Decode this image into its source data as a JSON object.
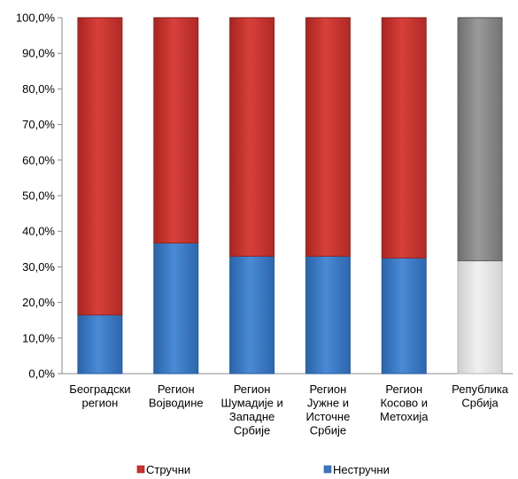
{
  "chart_data": {
    "type": "bar",
    "stacked": true,
    "percent": true,
    "categories": [
      [
        "Београдски",
        "регион"
      ],
      [
        "Регион",
        "Војводине"
      ],
      [
        "Регион",
        "Шумадије и",
        "Западне",
        "Србије"
      ],
      [
        "Регион",
        "Јужне и",
        "Источне",
        "Србије"
      ],
      [
        "Регион",
        "Косово и",
        "Метохија"
      ],
      [
        "Република",
        "Србија"
      ]
    ],
    "series": [
      {
        "name": "Нестручни",
        "values": [
          16.5,
          36.7,
          33.0,
          33.0,
          32.5,
          31.7
        ],
        "color": "#3a78c2"
      },
      {
        "name": "Стручни",
        "values": [
          83.5,
          63.3,
          67.0,
          67.0,
          67.5,
          68.3
        ],
        "color": "#c8322d"
      }
    ],
    "highlight": {
      "index": 5,
      "colors": {
        "Нестручни": "#e2e2e2",
        "Стручни": "#8a8a8a"
      }
    },
    "ylim": [
      0,
      100
    ],
    "yticks": [
      "0,0%",
      "10,0%",
      "20,0%",
      "30,0%",
      "40,0%",
      "50,0%",
      "60,0%",
      "70,0%",
      "80,0%",
      "90,0%",
      "100,0%"
    ],
    "grid": false,
    "legend": {
      "position": "bottom",
      "order": [
        "Стручни",
        "Нестручни"
      ]
    }
  }
}
